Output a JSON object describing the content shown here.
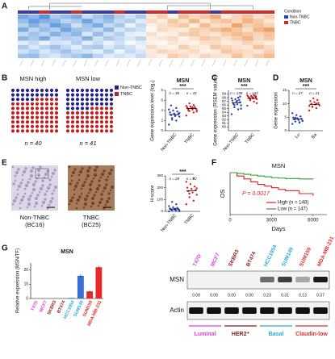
{
  "panels": {
    "A": {
      "letter": "A",
      "legend_title": "Condition",
      "legend": [
        {
          "name": "Non-TNBC",
          "color": "#3a3aa8"
        },
        {
          "name": "TNBC",
          "color": "#d62a2a"
        }
      ],
      "column_condition": [
        0,
        0,
        1,
        0,
        0,
        1,
        0,
        0,
        0,
        1,
        0,
        0,
        1,
        1,
        0,
        1,
        1,
        1,
        0,
        1,
        1,
        1,
        1,
        1
      ],
      "clim": [
        -2,
        2
      ],
      "matrix": [
        [
          -1.5,
          -1.2,
          -1.8,
          -0.9,
          -1.1,
          -1.4,
          -0.6,
          -1.0,
          -1.3,
          -0.8,
          -0.5,
          -0.9,
          0.4,
          0.8,
          0.2,
          1.1,
          0.6,
          0.9,
          1.4,
          0.3,
          0.7,
          1.0,
          0.5,
          0.8
        ],
        [
          -1.1,
          -1.6,
          -1.3,
          -1.2,
          -0.7,
          -0.9,
          -1.5,
          -0.8,
          -1.1,
          -0.6,
          -0.8,
          -0.3,
          0.6,
          0.3,
          0.9,
          0.5,
          1.2,
          0.4,
          0.8,
          1.0,
          0.6,
          1.3,
          0.9,
          0.4
        ],
        [
          -0.8,
          -1.3,
          -0.9,
          -1.6,
          -1.2,
          -0.5,
          -1.0,
          -1.4,
          -0.6,
          -0.9,
          -0.2,
          -0.6,
          0.2,
          0.5,
          0.7,
          0.9,
          0.3,
          1.1,
          0.5,
          0.6,
          1.5,
          0.8,
          1.0,
          0.7
        ],
        [
          -1.4,
          -0.7,
          -1.1,
          -0.8,
          -1.5,
          -1.0,
          -0.9,
          -0.6,
          -1.2,
          -0.4,
          -0.7,
          -0.5,
          0.1,
          0.6,
          0.4,
          0.3,
          0.8,
          0.7,
          1.0,
          1.3,
          0.9,
          0.5,
          1.2,
          1.6
        ],
        [
          -0.6,
          -1.0,
          -0.7,
          -1.3,
          -0.9,
          -1.2,
          -0.4,
          -1.1,
          -0.5,
          -0.8,
          -0.3,
          -0.2,
          0.5,
          0.2,
          0.3,
          0.7,
          0.9,
          0.6,
          0.4,
          0.8,
          1.1,
          0.9,
          0.7,
          1.0
        ],
        [
          -1.2,
          -0.9,
          -1.4,
          -0.6,
          -0.8,
          -0.7,
          -1.3,
          -0.5,
          -0.9,
          -0.6,
          -0.4,
          -0.7,
          0.3,
          0.4,
          0.6,
          0.2,
          0.5,
          0.9,
          0.7,
          0.5,
          0.8,
          1.2,
          0.6,
          0.9
        ],
        [
          -0.3,
          -0.6,
          -0.2,
          -0.5,
          -0.4,
          -0.8,
          -0.3,
          -0.6,
          -0.2,
          -0.5,
          -0.1,
          -0.3,
          0.2,
          0.1,
          0.4,
          0.3,
          0.2,
          0.5,
          0.6,
          0.3,
          0.4,
          0.7,
          0.5,
          0.3
        ],
        [
          -0.9,
          -0.4,
          -0.7,
          -1.0,
          -0.6,
          -0.3,
          -0.8,
          -0.9,
          -0.4,
          -0.7,
          -0.5,
          -0.2,
          0.6,
          0.3,
          0.2,
          0.8,
          0.4,
          0.3,
          0.9,
          0.7,
          0.5,
          0.4,
          1.0,
          0.6
        ],
        [
          -0.5,
          -0.8,
          -0.4,
          -0.7,
          -1.0,
          -0.6,
          -0.5,
          -0.3,
          -0.8,
          -0.2,
          -0.6,
          -0.4,
          0.3,
          0.7,
          0.5,
          0.4,
          0.6,
          0.2,
          0.3,
          0.9,
          0.7,
          0.6,
          0.4,
          0.8
        ],
        [
          -1.0,
          -1.1,
          -0.6,
          -0.4,
          -0.7,
          -0.9,
          -1.2,
          -0.7,
          -0.3,
          -0.5,
          -0.3,
          -0.6,
          0.4,
          0.2,
          0.8,
          0.6,
          0.3,
          0.7,
          0.5,
          0.4,
          1.0,
          0.5,
          0.8,
          1.1
        ]
      ]
    },
    "B": {
      "letter": "B",
      "grids": [
        {
          "label": "MSN high",
          "n_label": "n = 40",
          "values": [
            25,
            75
          ]
        },
        {
          "label": "MSN low",
          "n_label": "n = 41",
          "values": [
            45,
            55
          ]
        }
      ],
      "legend": [
        {
          "name": "Non-TNBC",
          "color": "#22228c"
        },
        {
          "name": "TNBC",
          "color": "#c41e1e"
        }
      ],
      "scatter": {
        "title": "MSN",
        "sig": "***",
        "ylabel": "Gene expression level (log₂)",
        "ylim": [
          0,
          8
        ],
        "yticks": [
          0,
          2,
          4,
          6,
          8
        ],
        "groups": [
          {
            "label": "Non-TNBC",
            "n_label": "n = 38",
            "color": "#2a3fbf",
            "mean": 3.2,
            "values": [
              1.2,
              2.0,
              2.5,
              2.8,
              3.0,
              3.1,
              3.3,
              3.4,
              3.6,
              3.8,
              4.0,
              4.2,
              4.5,
              2.2,
              3.5,
              2.9,
              5.0
            ]
          },
          {
            "label": "TNBC",
            "n_label": "n = 43",
            "color": "#d42222",
            "mean": 4.4,
            "values": [
              3.0,
              3.6,
              3.9,
              4.1,
              4.2,
              4.3,
              4.4,
              4.5,
              4.6,
              4.7,
              4.8,
              4.9,
              5.1,
              5.4,
              3.8,
              4.6,
              4.0
            ]
          }
        ]
      }
    },
    "C": {
      "letter": "C",
      "scatter": {
        "title": "MSN",
        "sig": "***",
        "ylabel": "Gene expression (RSEM values)",
        "ylim": [
          89,
          100
        ],
        "yticks": [
          90,
          91,
          92,
          93,
          94,
          95,
          96,
          97,
          98,
          99
        ],
        "groups": [
          {
            "label": "Non-TNBC",
            "n_label": "n = 138",
            "color": "#2a3fbf",
            "mean": 96.6,
            "values": [
              93.5,
              94.8,
              95.4,
              95.9,
              96.2,
              96.5,
              96.8,
              97.0,
              97.2,
              97.4,
              97.6,
              97.8,
              98.0,
              96.0,
              95.0,
              97.1,
              96.3,
              98.3
            ]
          },
          {
            "label": "TNBC",
            "n_label": "n = 142",
            "color": "#d42222",
            "mean": 97.8,
            "values": [
              95.8,
              96.9,
              97.3,
              97.6,
              97.8,
              98.0,
              98.1,
              98.2,
              98.3,
              98.4,
              98.5,
              98.6,
              98.7,
              97.5,
              96.5,
              98.0,
              97.9,
              98.4
            ]
          }
        ]
      }
    },
    "D": {
      "letter": "D",
      "scatter": {
        "title": "MSN",
        "sig": "***",
        "ylabel": "Gene expression",
        "ylim": [
          0,
          15
        ],
        "yticks": [
          0,
          5,
          10,
          15
        ],
        "groups": [
          {
            "label": "Lu",
            "n_label": "n = 27",
            "color": "#2a3fbf",
            "mean": 4.3,
            "values": [
              2.5,
              3.0,
              3.4,
              3.7,
              4.0,
              4.2,
              4.4,
              4.6,
              4.9,
              5.3,
              5.8,
              6.5,
              3.2,
              4.8,
              3.6
            ]
          },
          {
            "label": "Ba",
            "n_label": "n = 21",
            "color": "#d42222",
            "mean": 9.8,
            "values": [
              7.5,
              8.4,
              9.0,
              9.4,
              9.7,
              10.0,
              10.3,
              10.6,
              11.0,
              11.4,
              12.0,
              9.2,
              10.1,
              8.8
            ]
          }
        ]
      }
    },
    "E": {
      "letter": "E",
      "images": [
        {
          "label": "Non-TNBC",
          "sublabel": "(BC16)"
        },
        {
          "label": "TNBC",
          "sublabel": "(BC25)"
        }
      ],
      "scatter": {
        "title": "",
        "sig": "***",
        "ylabel": "H-score",
        "ylim": [
          0,
          300
        ],
        "yticks": [
          0,
          100,
          200,
          300
        ],
        "groups": [
          {
            "label": "Non-TNBC",
            "n_label": "n = 28",
            "color": "#2a3fbf",
            "mean": 20,
            "values": [
              0,
              5,
              8,
              10,
              12,
              15,
              18,
              20,
              25,
              30,
              35,
              45,
              60,
              80,
              2,
              22
            ]
          },
          {
            "label": "TNBC",
            "n_label": "n = 22",
            "color": "#d42222",
            "mean": 175,
            "values": [
              60,
              90,
              120,
              140,
              160,
              170,
              180,
              190,
              200,
              210,
              230,
              250,
              280,
              150,
              195
            ]
          }
        ]
      }
    },
    "F": {
      "letter": "F",
      "chart_data": {
        "type": "line",
        "title": "MSN",
        "ylabel": "OS",
        "xlabel": "Days",
        "xlim": [
          0,
          7000
        ],
        "xticks": [
          0,
          3000,
          6000
        ],
        "ylim": [
          0,
          1
        ],
        "annotation": "P = 0.0017",
        "x": [
          0,
          500,
          1000,
          1500,
          2000,
          2500,
          3000,
          3500,
          4000,
          5000,
          6000
        ],
        "series": [
          {
            "name": "High (n = 148)",
            "color": "#e02020",
            "values": [
              1,
              0.92,
              0.85,
              0.78,
              0.72,
              0.68,
              0.64,
              0.6,
              0.57,
              0.5,
              0.45
            ]
          },
          {
            "name": "Low (n = 147)",
            "color": "#2aa02a",
            "values": [
              1,
              0.98,
              0.96,
              0.94,
              0.92,
              0.9,
              0.88,
              0.87,
              0.86,
              0.85,
              0.84
            ]
          }
        ]
      }
    },
    "G": {
      "letter": "G",
      "chart_data": {
        "type": "bar",
        "title": "MSN",
        "ylabel": "Relative expression (MSN/TF)",
        "ylim": [
          0,
          25
        ],
        "yticks": [
          0,
          10,
          20
        ],
        "categories": [
          "T47D",
          "MCF7",
          "SKBR3",
          "BT474",
          "HCC1954",
          "SUM149",
          "SUM159",
          "MDA-MB-231"
        ],
        "label_colors": [
          "#e040e0",
          "#e040e0",
          "#8b1a1a",
          "#8b1a1a",
          "#29a9d6",
          "#29a9d6",
          "#e32b2b",
          "#e32b2b"
        ],
        "values": [
          0.02,
          0.02,
          0.05,
          0.02,
          0.5,
          16,
          5,
          22
        ],
        "errors": [
          0.01,
          0.01,
          0.02,
          0.01,
          0.1,
          1.0,
          0.5,
          0.8
        ],
        "colors": [
          "#e040e0",
          "#e040e0",
          "#8b1a1a",
          "#8b1a1a",
          "#29a9d6",
          "#3a6fd8",
          "#e32b2b",
          "#e32b2b"
        ]
      },
      "western": {
        "lanes": [
          "T47D",
          "MCF7",
          "SKBR3",
          "BT474",
          "HCC1954",
          "SUM149",
          "SUM159",
          "MDA-MB-231"
        ],
        "lane_colors": [
          "#e040e0",
          "#e040e0",
          "#8b1a1a",
          "#8b1a1a",
          "#29a9d6",
          "#29a9d6",
          "#e32b2b",
          "#e32b2b"
        ],
        "rows": [
          "MSN",
          "Actin"
        ],
        "values": [
          0,
          0,
          0,
          0,
          0.23,
          0.31,
          0.13,
          0.37
        ],
        "value_labels": [
          "0.00",
          "0.00",
          "0.00",
          "0.00",
          "0.23",
          "0.31",
          "0.13",
          "0.37"
        ],
        "groups": [
          {
            "label": "Luminal",
            "color": "#e040e0"
          },
          {
            "label": "HER2⁺",
            "color": "#8b1a1a"
          },
          {
            "label": "Basal",
            "color": "#29a9d6"
          },
          {
            "label": "Claudin-low",
            "color": "#e32b2b"
          }
        ]
      }
    }
  }
}
